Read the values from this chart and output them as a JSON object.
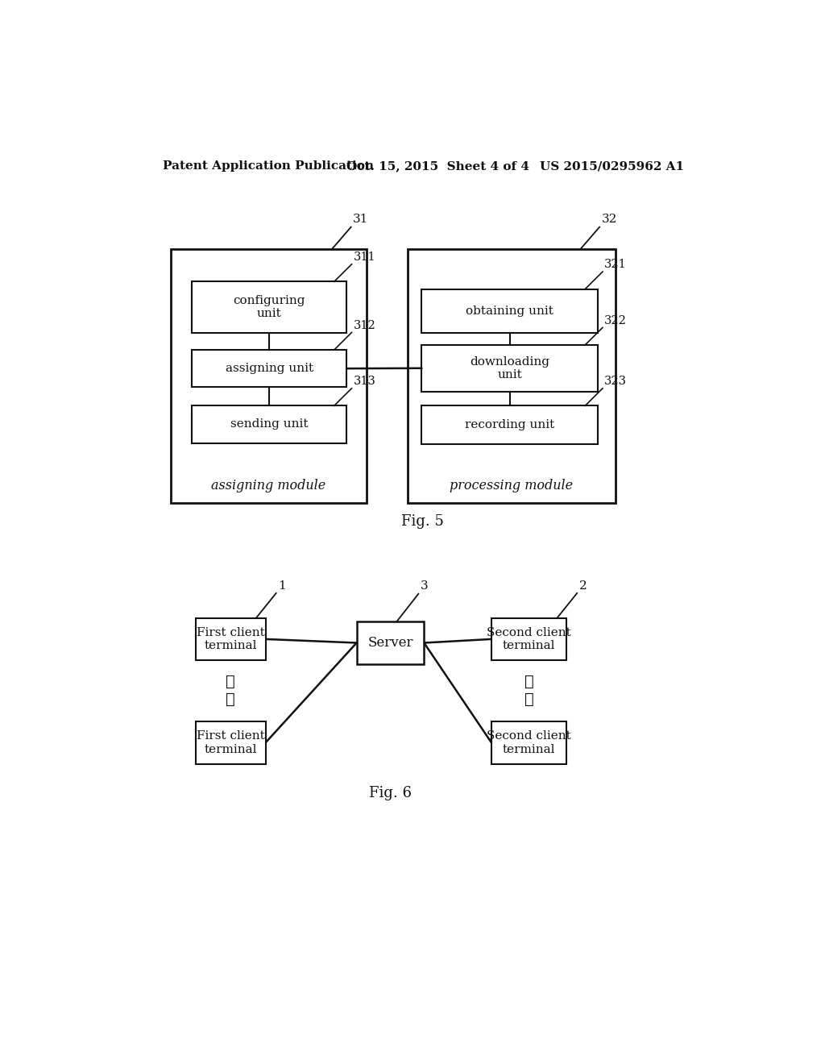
{
  "background_color": "#ffffff",
  "header_left": "Patent Application Publication",
  "header_mid": "Oct. 15, 2015  Sheet 4 of 4",
  "header_right": "US 2015/0295962 A1",
  "fig5_title": "Fig. 5",
  "fig6_title": "Fig. 6",
  "fig5": {
    "left_module_label": "assigning module",
    "left_module_ref": "31",
    "right_module_label": "processing module",
    "right_module_ref": "32",
    "left_boxes": [
      {
        "label": "configuring\nunit",
        "ref": "311"
      },
      {
        "label": "assigning unit",
        "ref": "312"
      },
      {
        "label": "sending unit",
        "ref": "313"
      }
    ],
    "right_boxes": [
      {
        "label": "obtaining unit",
        "ref": "321"
      },
      {
        "label": "downloading\nunit",
        "ref": "322"
      },
      {
        "label": "recording unit",
        "ref": "323"
      }
    ]
  },
  "fig6": {
    "server_label": "Server",
    "server_ref": "3",
    "left_ref": "1",
    "right_ref": "2",
    "left_boxes": [
      {
        "label": "First client\nterminal"
      },
      {
        "label": "First client\nterminal"
      }
    ],
    "right_boxes": [
      {
        "label": "Second client\nterminal"
      },
      {
        "label": "Second client\nterminal"
      }
    ]
  }
}
